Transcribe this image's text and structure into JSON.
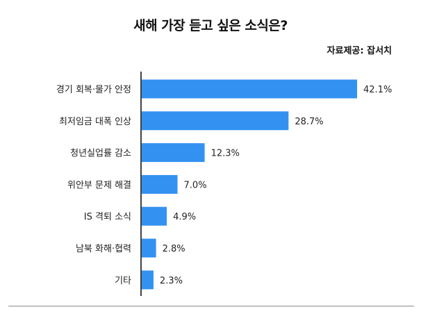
{
  "chart_data": {
    "type": "bar",
    "orientation": "horizontal",
    "title": "새해 가장 듣고 싶은 소식은?",
    "source": "자료제공: 잡서치",
    "categories": [
      "경기 회복·물가 안정",
      "최저임금 대폭 인상",
      "청년실업률 감소",
      "위안부 문제 해결",
      "IS 격퇴 소식",
      "남북 화해·협력",
      "기타"
    ],
    "values": [
      42.1,
      28.7,
      12.3,
      7.0,
      4.9,
      2.8,
      2.3
    ],
    "value_labels": [
      "42.1%",
      "28.7%",
      "12.3%",
      "7.0%",
      "4.9%",
      "2.8%",
      "2.3%"
    ],
    "bar_color": "#3392f1",
    "xlim": [
      0,
      42.1
    ],
    "grid": false,
    "legend": "none"
  }
}
